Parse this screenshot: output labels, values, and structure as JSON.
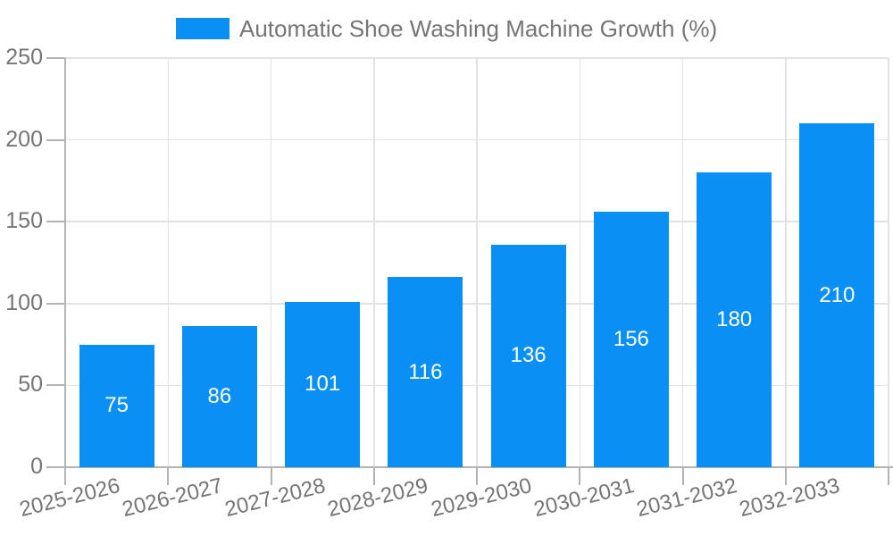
{
  "legend": {
    "label": "Automatic Shoe Washing Machine Growth (%)"
  },
  "colors": {
    "bar": "#0a90f5",
    "axis": "#b3b3b3",
    "grid": "#e2e2e2",
    "tick_text": "#757575",
    "value_label_text": "#ffffff",
    "background": "#ffffff"
  },
  "chart_data": {
    "type": "bar",
    "title": "Automatic Shoe Washing Machine Growth (%)",
    "categories": [
      "2025-2026",
      "2026-2027",
      "2027-2028",
      "2028-2029",
      "2029-2030",
      "2030-2031",
      "2031-2032",
      "2032-2033"
    ],
    "values": [
      75,
      86,
      101,
      116,
      136,
      156,
      180,
      210
    ],
    "xlabel": "",
    "ylabel": "",
    "ylim": [
      0,
      250
    ],
    "ytick_step": 50,
    "ytick_labels": [
      "0",
      "50",
      "100",
      "150",
      "200",
      "250"
    ],
    "grid": true,
    "legend_position": "top-center",
    "value_labels": "inside-center",
    "xtick_rotation_deg": -14
  }
}
